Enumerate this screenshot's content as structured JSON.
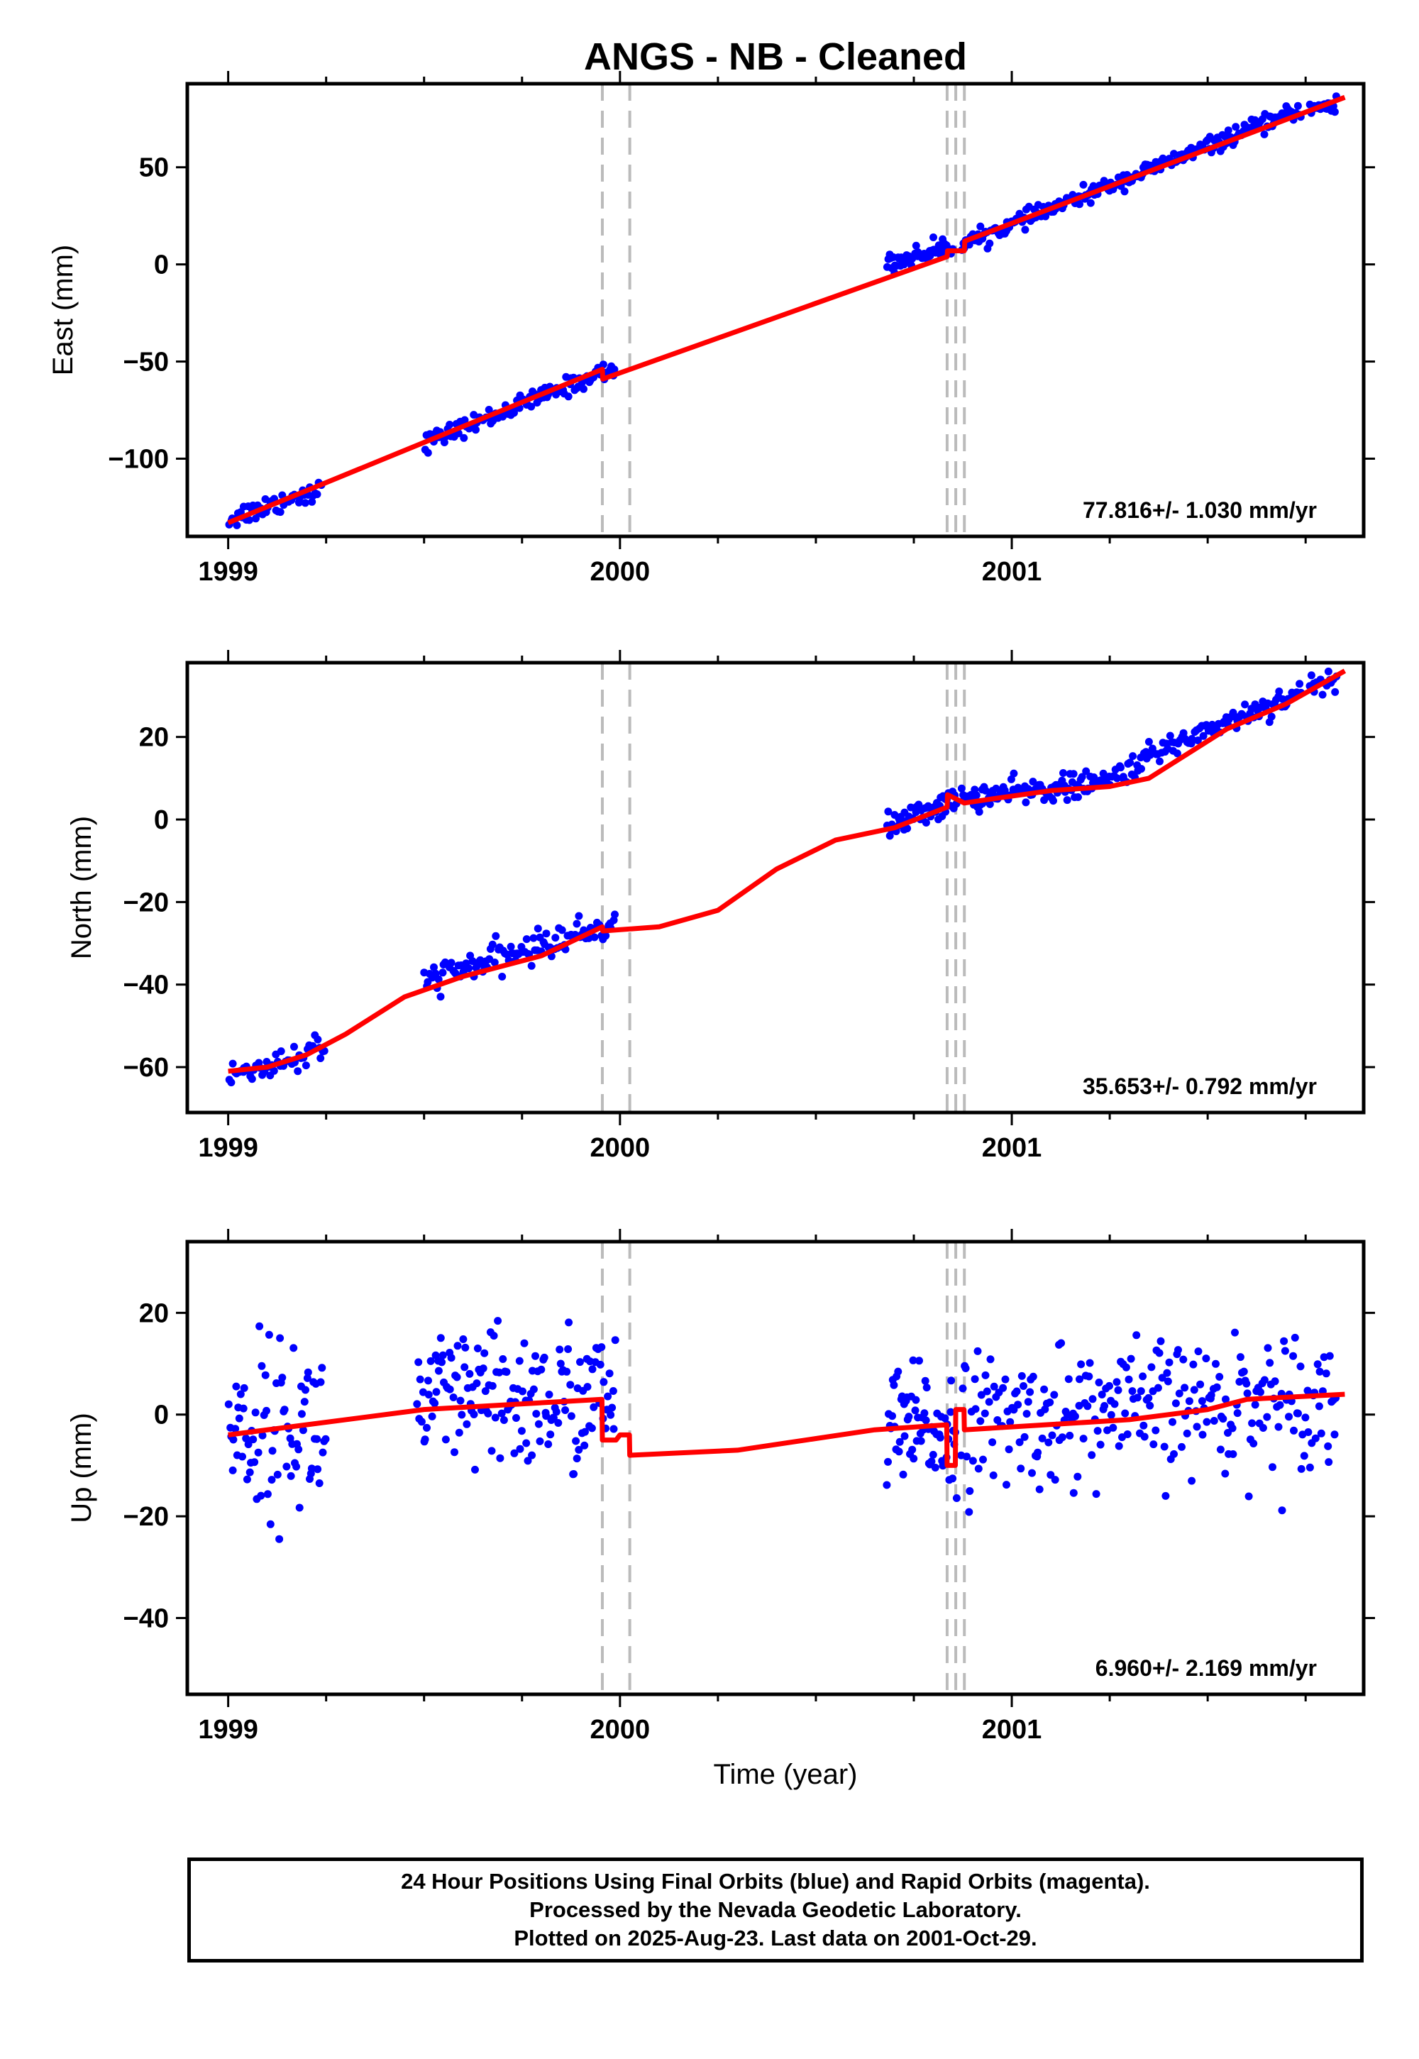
{
  "chart_data": {
    "title": "ANGS  - NB - Cleaned",
    "xlabel": "Time (year)",
    "x_ticks": [
      "1999",
      "2000",
      "2001"
    ],
    "xlim": [
      1998.95,
      2001.88
    ],
    "colors": {
      "data": "#0000ff",
      "model": "#ff0000",
      "offset_line": "#bbbbbb",
      "frame": "#000000"
    },
    "offset_lines": [
      1999.955,
      2000.025,
      2000.835,
      2000.857,
      2000.879
    ],
    "panels": [
      {
        "type": "scatter",
        "ylabel": "East (mm)",
        "ylim": [
          -140,
          93
        ],
        "y_ticks": [
          50,
          0,
          -50,
          -100
        ],
        "y_tick_labels": [
          "50",
          "0",
          "−50",
          "−100"
        ],
        "rate_label": "77.816+/- 1.030 mm/yr",
        "series": [
          {
            "name": "",
            "style": "points",
            "segments": [
              {
                "x_range": [
                  1999.0,
                  1999.24
                ],
                "trend": [
                  [
                    1999.0,
                    -131
                  ],
                  [
                    1999.24,
                    -115
                  ]
                ],
                "spread": 5,
                "count": 50
              },
              {
                "x_range": [
                  1999.5,
                  1999.99
                ],
                "trend": [
                  [
                    1999.5,
                    -92
                  ],
                  [
                    1999.99,
                    -53
                  ]
                ],
                "spread": 4,
                "count": 110
              },
              {
                "x_range": [
                  2000.68,
                  2000.85
                ],
                "trend": [
                  [
                    2000.68,
                    0
                  ],
                  [
                    2000.85,
                    10
                  ]
                ],
                "spread": 4,
                "count": 55
              },
              {
                "x_range": [
                  2000.87,
                  2001.74
                ],
                "trend": [
                  [
                    2000.87,
                    10
                  ],
                  [
                    2001.74,
                    80
                  ]
                ],
                "spread": 3.5,
                "count": 230
              },
              {
                "x_range": [
                  2001.76,
                  2001.83
                ],
                "trend": [
                  [
                    2001.76,
                    80
                  ],
                  [
                    2001.83,
                    82
                  ]
                ],
                "spread": 4,
                "count": 18
              }
            ]
          },
          {
            "name": "",
            "style": "line",
            "points": [
              [
                1999.0,
                -133
              ],
              [
                1999.955,
                -54
              ],
              [
                1999.956,
                -59
              ],
              [
                2000.835,
                4
              ],
              [
                2000.836,
                7
              ],
              [
                2000.879,
                7
              ],
              [
                2000.88,
                12
              ],
              [
                2001.85,
                86
              ]
            ]
          }
        ]
      },
      {
        "type": "scatter",
        "ylabel": "North (mm)",
        "ylim": [
          -71,
          38
        ],
        "y_ticks": [
          20,
          0,
          -20,
          -40,
          -60
        ],
        "y_tick_labels": [
          "20",
          "0",
          "−20",
          "−40",
          "−60"
        ],
        "rate_label": "35.653+/- 0.792 mm/yr",
        "series": [
          {
            "name": "",
            "style": "points",
            "segments": [
              {
                "x_range": [
                  1999.0,
                  1999.25
                ],
                "trend": [
                  [
                    1999.0,
                    -62
                  ],
                  [
                    1999.25,
                    -56
                  ]
                ],
                "spread": 3.5,
                "count": 50
              },
              {
                "x_range": [
                  1999.5,
                  1999.99
                ],
                "trend": [
                  [
                    1999.5,
                    -39
                  ],
                  [
                    1999.99,
                    -25
                  ]
                ],
                "spread": 3,
                "count": 110
              },
              {
                "x_range": [
                  2000.68,
                  2000.86
                ],
                "trend": [
                  [
                    2000.68,
                    -2
                  ],
                  [
                    2000.86,
                    5
                  ]
                ],
                "spread": 2.5,
                "count": 55
              },
              {
                "x_range": [
                  2000.87,
                  2001.25
                ],
                "trend": [
                  [
                    2000.87,
                    5
                  ],
                  [
                    2001.25,
                    9
                  ]
                ],
                "spread": 2.5,
                "count": 110
              },
              {
                "x_range": [
                  2001.25,
                  2001.74
                ],
                "trend": [
                  [
                    2001.25,
                    10
                  ],
                  [
                    2001.45,
                    20
                  ],
                  [
                    2001.74,
                    31
                  ]
                ],
                "spread": 2.5,
                "count": 110
              },
              {
                "x_range": [
                  2001.76,
                  2001.83
                ],
                "trend": [
                  [
                    2001.76,
                    32
                  ],
                  [
                    2001.83,
                    34
                  ]
                ],
                "spread": 2.5,
                "count": 18
              }
            ]
          },
          {
            "name": "",
            "style": "line",
            "points": [
              [
                1999.0,
                -61
              ],
              [
                1999.1,
                -60
              ],
              [
                1999.2,
                -57
              ],
              [
                1999.3,
                -52
              ],
              [
                1999.45,
                -43
              ],
              [
                1999.6,
                -38
              ],
              [
                1999.8,
                -33
              ],
              [
                1999.955,
                -26
              ],
              [
                1999.956,
                -27
              ],
              [
                2000.1,
                -26
              ],
              [
                2000.25,
                -22
              ],
              [
                2000.4,
                -12
              ],
              [
                2000.55,
                -5
              ],
              [
                2000.7,
                -2
              ],
              [
                2000.835,
                3
              ],
              [
                2000.836,
                6
              ],
              [
                2000.879,
                4
              ],
              [
                2000.95,
                5
              ],
              [
                2001.1,
                7
              ],
              [
                2001.25,
                8
              ],
              [
                2001.35,
                10
              ],
              [
                2001.45,
                16
              ],
              [
                2001.55,
                22
              ],
              [
                2001.7,
                28
              ],
              [
                2001.85,
                36
              ]
            ]
          }
        ]
      },
      {
        "type": "scatter",
        "ylabel": "Up (mm)",
        "xlabel": "Time (year)",
        "ylim": [
          -55,
          34
        ],
        "y_ticks": [
          20,
          0,
          -20,
          -40
        ],
        "y_tick_labels": [
          "20",
          "0",
          "−20",
          "−40"
        ],
        "rate_label": "6.960+/- 2.169 mm/yr",
        "series": [
          {
            "name": "",
            "style": "points",
            "segments": [
              {
                "x_range": [
                  1999.0,
                  1999.25
                ],
                "trend": [
                  [
                    1999.0,
                    -3
                  ],
                  [
                    1999.25,
                    -2
                  ]
                ],
                "spread": 14,
                "count": 80
              },
              {
                "x_range": [
                  1999.48,
                  1999.99
                ],
                "trend": [
                  [
                    1999.48,
                    2
                  ],
                  [
                    1999.99,
                    3
                  ]
                ],
                "spread": 12,
                "count": 160
              },
              {
                "x_range": [
                  2000.68,
                  2000.86
                ],
                "trend": [
                  [
                    2000.68,
                    -3
                  ],
                  [
                    2000.86,
                    -3
                  ]
                ],
                "spread": 10,
                "count": 70
              },
              {
                "x_range": [
                  2000.87,
                  2001.83
                ],
                "trend": [
                  [
                    2000.87,
                    -2
                  ],
                  [
                    2001.83,
                    4
                  ]
                ],
                "spread": 11,
                "count": 260
              }
            ]
          },
          {
            "name": "",
            "style": "line",
            "points": [
              [
                1999.0,
                -4
              ],
              [
                1999.5,
                1
              ],
              [
                1999.954,
                3
              ],
              [
                1999.955,
                -5
              ],
              [
                1999.99,
                -5
              ],
              [
                2000.0,
                -4
              ],
              [
                2000.024,
                -4
              ],
              [
                2000.025,
                -8
              ],
              [
                2000.3,
                -7
              ],
              [
                2000.65,
                -3
              ],
              [
                2000.834,
                -2
              ],
              [
                2000.835,
                -10
              ],
              [
                2000.856,
                -10
              ],
              [
                2000.857,
                1
              ],
              [
                2000.878,
                1
              ],
              [
                2000.879,
                -3
              ],
              [
                2001.3,
                -1
              ],
              [
                2001.5,
                1
              ],
              [
                2001.6,
                3
              ],
              [
                2001.85,
                4
              ]
            ]
          }
        ]
      }
    ]
  },
  "footer": {
    "line1": "24 Hour Positions Using Final Orbits (blue) and Rapid Orbits (magenta).",
    "line2": "Processed by the Nevada Geodetic Laboratory.",
    "line3": "Plotted on 2025-Aug-23. Last data on 2001-Oct-29."
  }
}
